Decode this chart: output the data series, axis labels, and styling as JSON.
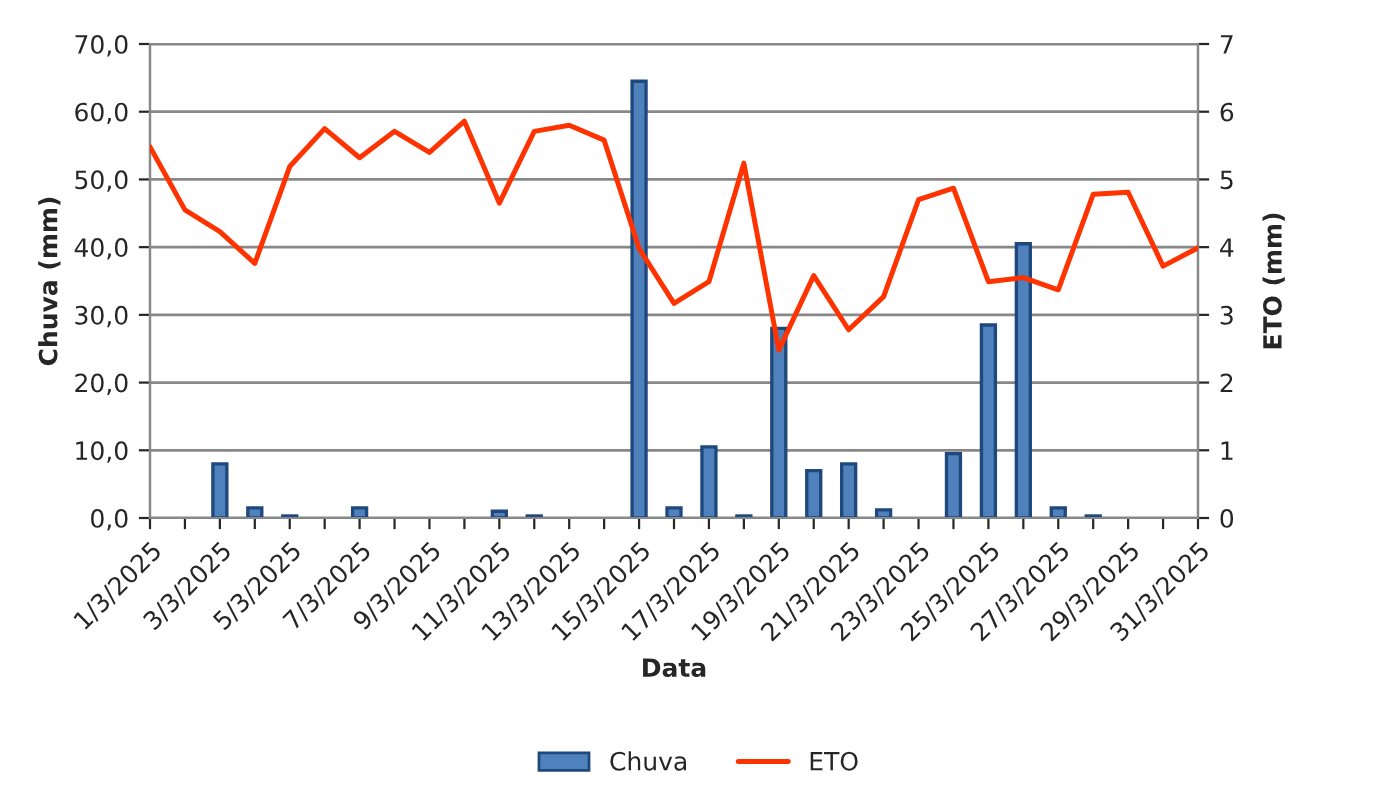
{
  "chart_data": {
    "type": "bar",
    "xlabel": "Data",
    "ylabel": "Chuva (mm)",
    "y2label": "ETO (mm)",
    "categories": [
      "1/3/2025",
      null,
      "3/3/2025",
      null,
      "5/3/2025",
      null,
      "7/3/2025",
      null,
      "9/3/2025",
      null,
      "11/3/2025",
      null,
      "13/3/2025",
      null,
      "15/3/2025",
      null,
      "17/3/2025",
      null,
      "19/3/2025",
      null,
      "21/3/2025",
      null,
      "23/3/2025",
      null,
      "25/3/2025",
      null,
      "27/3/2025",
      null,
      "29/3/2025",
      null,
      "31/3/2025"
    ],
    "series": [
      {
        "name": "Chuva",
        "color": "#4f81bd",
        "values": [
          null,
          null,
          8.0,
          1.5,
          0.3,
          null,
          1.5,
          null,
          null,
          null,
          1.0,
          0.3,
          null,
          null,
          64.5,
          1.5,
          10.5,
          0.3,
          28.0,
          7.0,
          8.0,
          1.2,
          null,
          9.5,
          28.5,
          40.5,
          1.5,
          0.3,
          null,
          null,
          null
        ]
      },
      {
        "name": "ETO",
        "type": "line",
        "axis": "y2",
        "color": "#ff3300",
        "values": [
          5.48,
          4.55,
          4.23,
          3.76,
          5.19,
          5.75,
          5.32,
          5.71,
          5.4,
          5.86,
          4.65,
          5.71,
          5.8,
          5.58,
          3.98,
          3.17,
          3.49,
          5.24,
          2.48,
          3.58,
          2.78,
          3.27,
          4.7,
          4.87,
          3.49,
          3.55,
          3.37,
          4.78,
          4.81,
          3.72,
          3.99
        ]
      }
    ],
    "ylim": [
      0,
      70
    ],
    "yticks": [
      {
        "value": 0,
        "label": "0,0"
      },
      {
        "value": 10,
        "label": "10,0"
      },
      {
        "value": 20,
        "label": "20,0"
      },
      {
        "value": 30,
        "label": "30,0"
      },
      {
        "value": 40,
        "label": "40,0"
      },
      {
        "value": 50,
        "label": "50,0"
      },
      {
        "value": 60,
        "label": "60,0"
      },
      {
        "value": 70,
        "label": "70,0"
      }
    ],
    "y2lim": [
      0,
      7
    ],
    "y2ticks": [
      0,
      1,
      2,
      3,
      4,
      5,
      6,
      7
    ],
    "grid": "y",
    "legend": "bottom"
  }
}
